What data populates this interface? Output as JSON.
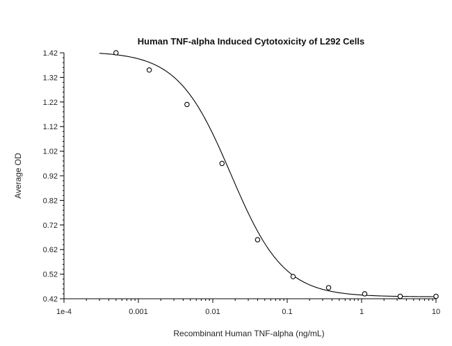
{
  "chart_data": {
    "type": "scatter",
    "title": "Human TNF-alpha Induced Cytotoxicity of L292 Cells",
    "xlabel": "Recombinant Human TNF-alpha (ng/mL)",
    "ylabel": "Average OD",
    "xscale": "log",
    "xlim": [
      0.0001,
      10
    ],
    "ylim": [
      0.42,
      1.42
    ],
    "grid": false,
    "x_ticks": [
      {
        "value": 0.0001,
        "label": "1e-4"
      },
      {
        "value": 0.001,
        "label": "0.001"
      },
      {
        "value": 0.01,
        "label": "0.01"
      },
      {
        "value": 0.1,
        "label": "0.1"
      },
      {
        "value": 1,
        "label": "1"
      },
      {
        "value": 10,
        "label": "10"
      }
    ],
    "y_ticks": [
      {
        "value": 1.42,
        "label": "1.42"
      },
      {
        "value": 1.32,
        "label": "1.32"
      },
      {
        "value": 1.22,
        "label": "1.22"
      },
      {
        "value": 1.12,
        "label": "1.12"
      },
      {
        "value": 1.02,
        "label": "1.02"
      },
      {
        "value": 0.92,
        "label": "0.92"
      },
      {
        "value": 0.82,
        "label": "0.82"
      },
      {
        "value": 0.72,
        "label": "0.72"
      },
      {
        "value": 0.62,
        "label": "0.62"
      },
      {
        "value": 0.52,
        "label": "0.52"
      },
      {
        "value": 0.42,
        "label": "0.42"
      }
    ],
    "series": [
      {
        "points": [
          {
            "x": 0.0005,
            "y": 1.42
          },
          {
            "x": 0.0014,
            "y": 1.35
          },
          {
            "x": 0.0045,
            "y": 1.21
          },
          {
            "x": 0.0133,
            "y": 0.97
          },
          {
            "x": 0.04,
            "y": 0.66
          },
          {
            "x": 0.12,
            "y": 0.51
          },
          {
            "x": 0.36,
            "y": 0.465
          },
          {
            "x": 1.1,
            "y": 0.44
          },
          {
            "x": 3.3,
            "y": 0.43
          },
          {
            "x": 10,
            "y": 0.43
          }
        ]
      }
    ],
    "fit_curve": {
      "type": "4PL",
      "top": 1.425,
      "bottom": 0.428,
      "ec50": 0.0175,
      "hill": 1.22
    }
  }
}
